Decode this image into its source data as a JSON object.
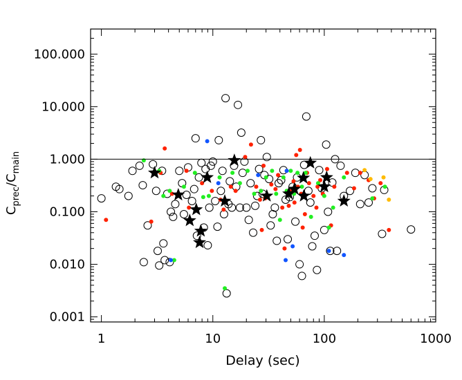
{
  "chart_data": {
    "type": "scatter",
    "title": "",
    "xlabel": "Delay (sec)",
    "ylabel_main": "C",
    "ylabel_sub1": "prec",
    "ylabel_mid": "/C",
    "ylabel_sub2": "main",
    "x_scale": "log",
    "y_scale": "log",
    "xlim": [
      0.8,
      1000
    ],
    "ylim": [
      0.0008,
      300
    ],
    "x_ticks": [
      1,
      10,
      100,
      1000
    ],
    "x_tick_labels": [
      "1",
      "10",
      "100",
      "1000"
    ],
    "y_ticks": [
      0.001,
      0.01,
      0.1,
      1,
      10,
      100
    ],
    "y_tick_labels": [
      "0.001",
      "0.010",
      "0.100",
      "1.000",
      "10.000",
      "100.000"
    ],
    "reference_line_y": 1.0,
    "grid": false,
    "legend": "none",
    "colors": {
      "open_circle": "#000000",
      "red": "#ff2200",
      "green": "#22ee22",
      "blue": "#1155ff",
      "orange": "#ffbb00",
      "star": "#000000"
    },
    "series": [
      {
        "marker": "open-circle",
        "color": "open_circle",
        "points": [
          [
            1.0,
            0.18
          ],
          [
            1.35,
            0.3
          ],
          [
            1.45,
            0.27
          ],
          [
            1.75,
            0.2
          ],
          [
            1.9,
            0.6
          ],
          [
            2.2,
            0.75
          ],
          [
            2.35,
            0.32
          ],
          [
            2.4,
            0.011
          ],
          [
            2.6,
            0.055
          ],
          [
            2.9,
            0.8
          ],
          [
            3.1,
            0.25
          ],
          [
            3.2,
            0.018
          ],
          [
            3.3,
            0.0095
          ],
          [
            3.5,
            0.6
          ],
          [
            3.6,
            0.025
          ],
          [
            3.7,
            0.012
          ],
          [
            3.9,
            0.22
          ],
          [
            4.1,
            0.011
          ],
          [
            4.2,
            0.1
          ],
          [
            4.4,
            0.08
          ],
          [
            4.6,
            0.14
          ],
          [
            5.0,
            0.6
          ],
          [
            5.3,
            0.35
          ],
          [
            5.5,
            0.09
          ],
          [
            5.8,
            0.21
          ],
          [
            6.0,
            0.7
          ],
          [
            6.5,
            0.16
          ],
          [
            6.8,
            0.27
          ],
          [
            7.0,
            2.5
          ],
          [
            7.2,
            0.035
          ],
          [
            7.5,
            0.45
          ],
          [
            7.9,
            0.85
          ],
          [
            8.3,
            0.05
          ],
          [
            8.6,
            0.65
          ],
          [
            9.0,
            0.023
          ],
          [
            9.3,
            0.12
          ],
          [
            9.6,
            0.75
          ],
          [
            10.0,
            0.9
          ],
          [
            10.5,
            0.16
          ],
          [
            11.0,
            0.052
          ],
          [
            11.3,
            2.3
          ],
          [
            11.8,
            0.25
          ],
          [
            12.2,
            0.6
          ],
          [
            12.6,
            0.09
          ],
          [
            13.0,
            14.5
          ],
          [
            13.3,
            0.0028
          ],
          [
            13.8,
            0.14
          ],
          [
            14.2,
            0.38
          ],
          [
            14.8,
            0.12
          ],
          [
            15.5,
            0.75
          ],
          [
            16.2,
            0.3
          ],
          [
            16.8,
            10.8
          ],
          [
            17.5,
            0.12
          ],
          [
            18.0,
            3.2
          ],
          [
            18.5,
            0.55
          ],
          [
            19.2,
            0.9
          ],
          [
            20.0,
            0.12
          ],
          [
            21.0,
            0.07
          ],
          [
            21.8,
            0.35
          ],
          [
            23.0,
            0.04
          ],
          [
            24.0,
            0.13
          ],
          [
            25.0,
            0.2
          ],
          [
            26.0,
            0.65
          ],
          [
            27.0,
            2.3
          ],
          [
            28.0,
            0.22
          ],
          [
            29.0,
            0.5
          ],
          [
            30.5,
            1.1
          ],
          [
            32.0,
            0.42
          ],
          [
            33.0,
            0.055
          ],
          [
            34.5,
            0.09
          ],
          [
            36.0,
            0.12
          ],
          [
            37.5,
            0.028
          ],
          [
            39.0,
            0.35
          ],
          [
            41.0,
            0.4
          ],
          [
            43.0,
            0.62
          ],
          [
            45.0,
            0.17
          ],
          [
            47.0,
            0.03
          ],
          [
            49.0,
            0.19
          ],
          [
            52.0,
            0.3
          ],
          [
            55.0,
            0.065
          ],
          [
            57.0,
            0.45
          ],
          [
            60.0,
            0.01
          ],
          [
            63.0,
            0.006
          ],
          [
            66.0,
            0.78
          ],
          [
            69.0,
            6.5
          ],
          [
            72.0,
            0.25
          ],
          [
            75.0,
            0.15
          ],
          [
            78.0,
            0.022
          ],
          [
            82.0,
            0.035
          ],
          [
            86.0,
            0.0078
          ],
          [
            90.0,
            0.62
          ],
          [
            95.0,
            0.28
          ],
          [
            100.0,
            0.045
          ],
          [
            104.0,
            1.9
          ],
          [
            108.0,
            0.1
          ],
          [
            113.0,
            0.018
          ],
          [
            118.0,
            0.36
          ],
          [
            125.0,
            1.0
          ],
          [
            130.0,
            0.018
          ],
          [
            140.0,
            0.75
          ],
          [
            150.0,
            0.2
          ],
          [
            170.0,
            0.25
          ],
          [
            190.0,
            0.55
          ],
          [
            210.0,
            0.14
          ],
          [
            230.0,
            0.5
          ],
          [
            250.0,
            0.15
          ],
          [
            270.0,
            0.28
          ],
          [
            330.0,
            0.038
          ],
          [
            345.0,
            0.26
          ],
          [
            600.0,
            0.046
          ]
        ]
      },
      {
        "marker": "filled-dot",
        "color": "red",
        "points": [
          [
            1.1,
            0.07
          ],
          [
            2.8,
            0.065
          ],
          [
            3.4,
            0.55
          ],
          [
            3.7,
            1.6
          ],
          [
            4.3,
            0.22
          ],
          [
            5.8,
            0.6
          ],
          [
            6.1,
            0.12
          ],
          [
            8.0,
            0.35
          ],
          [
            8.7,
            0.45
          ],
          [
            9.8,
            0.25
          ],
          [
            11.7,
            0.17
          ],
          [
            12.5,
            0.11
          ],
          [
            14.5,
            0.3
          ],
          [
            16.0,
            0.25
          ],
          [
            19.5,
            1.1
          ],
          [
            22.0,
            1.9
          ],
          [
            24.5,
            0.3
          ],
          [
            26.5,
            0.17
          ],
          [
            27.5,
            0.045
          ],
          [
            28.5,
            0.75
          ],
          [
            29.5,
            0.18
          ],
          [
            33.5,
            0.33
          ],
          [
            36.5,
            0.27
          ],
          [
            38.5,
            0.5
          ],
          [
            42.0,
            0.12
          ],
          [
            44.0,
            0.02
          ],
          [
            48.0,
            0.13
          ],
          [
            51.0,
            0.25
          ],
          [
            53.0,
            0.38
          ],
          [
            54.0,
            0.15
          ],
          [
            56.0,
            1.2
          ],
          [
            58.0,
            0.3
          ],
          [
            60.5,
            1.5
          ],
          [
            62.0,
            0.22
          ],
          [
            64.0,
            0.05
          ],
          [
            67.0,
            0.09
          ],
          [
            70.0,
            0.55
          ],
          [
            73.0,
            0.35
          ],
          [
            80.0,
            0.2
          ],
          [
            85.0,
            0.12
          ],
          [
            87.0,
            0.3
          ],
          [
            92.0,
            0.4
          ],
          [
            97.0,
            0.22
          ],
          [
            106.0,
            0.65
          ],
          [
            115.0,
            0.055
          ],
          [
            123.0,
            0.3
          ],
          [
            160.0,
            0.55
          ],
          [
            185.0,
            0.28
          ],
          [
            210.0,
            0.55
          ],
          [
            250.0,
            0.4
          ],
          [
            280.0,
            0.18
          ],
          [
            320.0,
            0.35
          ],
          [
            380.0,
            0.045
          ]
        ]
      },
      {
        "marker": "filled-dot",
        "color": "green",
        "points": [
          [
            2.4,
            0.95
          ],
          [
            3.3,
            0.6
          ],
          [
            3.6,
            0.2
          ],
          [
            4.1,
            0.25
          ],
          [
            4.5,
            0.012
          ],
          [
            5.5,
            0.3
          ],
          [
            6.9,
            0.55
          ],
          [
            8.2,
            0.19
          ],
          [
            9.2,
            0.2
          ],
          [
            11.5,
            0.45
          ],
          [
            12.8,
            0.0035
          ],
          [
            15.0,
            0.55
          ],
          [
            17.5,
            0.35
          ],
          [
            20.5,
            0.6
          ],
          [
            23.5,
            0.22
          ],
          [
            27.0,
            0.25
          ],
          [
            30.0,
            0.45
          ],
          [
            34.0,
            0.6
          ],
          [
            37.0,
            0.22
          ],
          [
            40.0,
            0.07
          ],
          [
            43.0,
            0.45
          ],
          [
            46.0,
            0.25
          ],
          [
            50.0,
            0.6
          ],
          [
            53.5,
            0.22
          ],
          [
            57.5,
            0.55
          ],
          [
            63.0,
            0.3
          ],
          [
            68.0,
            0.55
          ],
          [
            76.0,
            0.08
          ],
          [
            88.0,
            0.35
          ],
          [
            100.0,
            0.2
          ],
          [
            110.0,
            0.05
          ],
          [
            120.0,
            0.12
          ],
          [
            150.0,
            0.45
          ],
          [
            270.0,
            0.18
          ],
          [
            350.0,
            0.3
          ]
        ]
      },
      {
        "marker": "filled-dot",
        "color": "blue",
        "points": [
          [
            4.2,
            0.012
          ],
          [
            8.9,
            2.2
          ],
          [
            11.2,
            0.35
          ],
          [
            25.5,
            0.5
          ],
          [
            45.0,
            0.012
          ],
          [
            46.0,
            0.6
          ],
          [
            52.0,
            0.022
          ],
          [
            110.0,
            0.018
          ],
          [
            150.0,
            0.015
          ]
        ]
      },
      {
        "marker": "filled-dot",
        "color": "orange",
        "points": [
          [
            230.0,
            0.62
          ],
          [
            260.0,
            0.42
          ],
          [
            340.0,
            0.45
          ],
          [
            380.0,
            0.17
          ]
        ]
      },
      {
        "marker": "star",
        "color": "star",
        "points": [
          [
            3.0,
            0.55
          ],
          [
            4.9,
            0.21
          ],
          [
            6.2,
            0.068
          ],
          [
            7.1,
            0.11
          ],
          [
            7.6,
            0.026
          ],
          [
            7.8,
            0.043
          ],
          [
            8.9,
            0.45
          ],
          [
            12.8,
            0.16
          ],
          [
            15.6,
            0.95
          ],
          [
            30.5,
            0.2
          ],
          [
            48.0,
            0.22
          ],
          [
            54.0,
            0.27
          ],
          [
            65.0,
            0.44
          ],
          [
            65.5,
            0.2
          ],
          [
            75.0,
            0.85
          ],
          [
            100.0,
            0.3
          ],
          [
            105.0,
            0.45
          ],
          [
            150.0,
            0.16
          ]
        ]
      }
    ]
  }
}
